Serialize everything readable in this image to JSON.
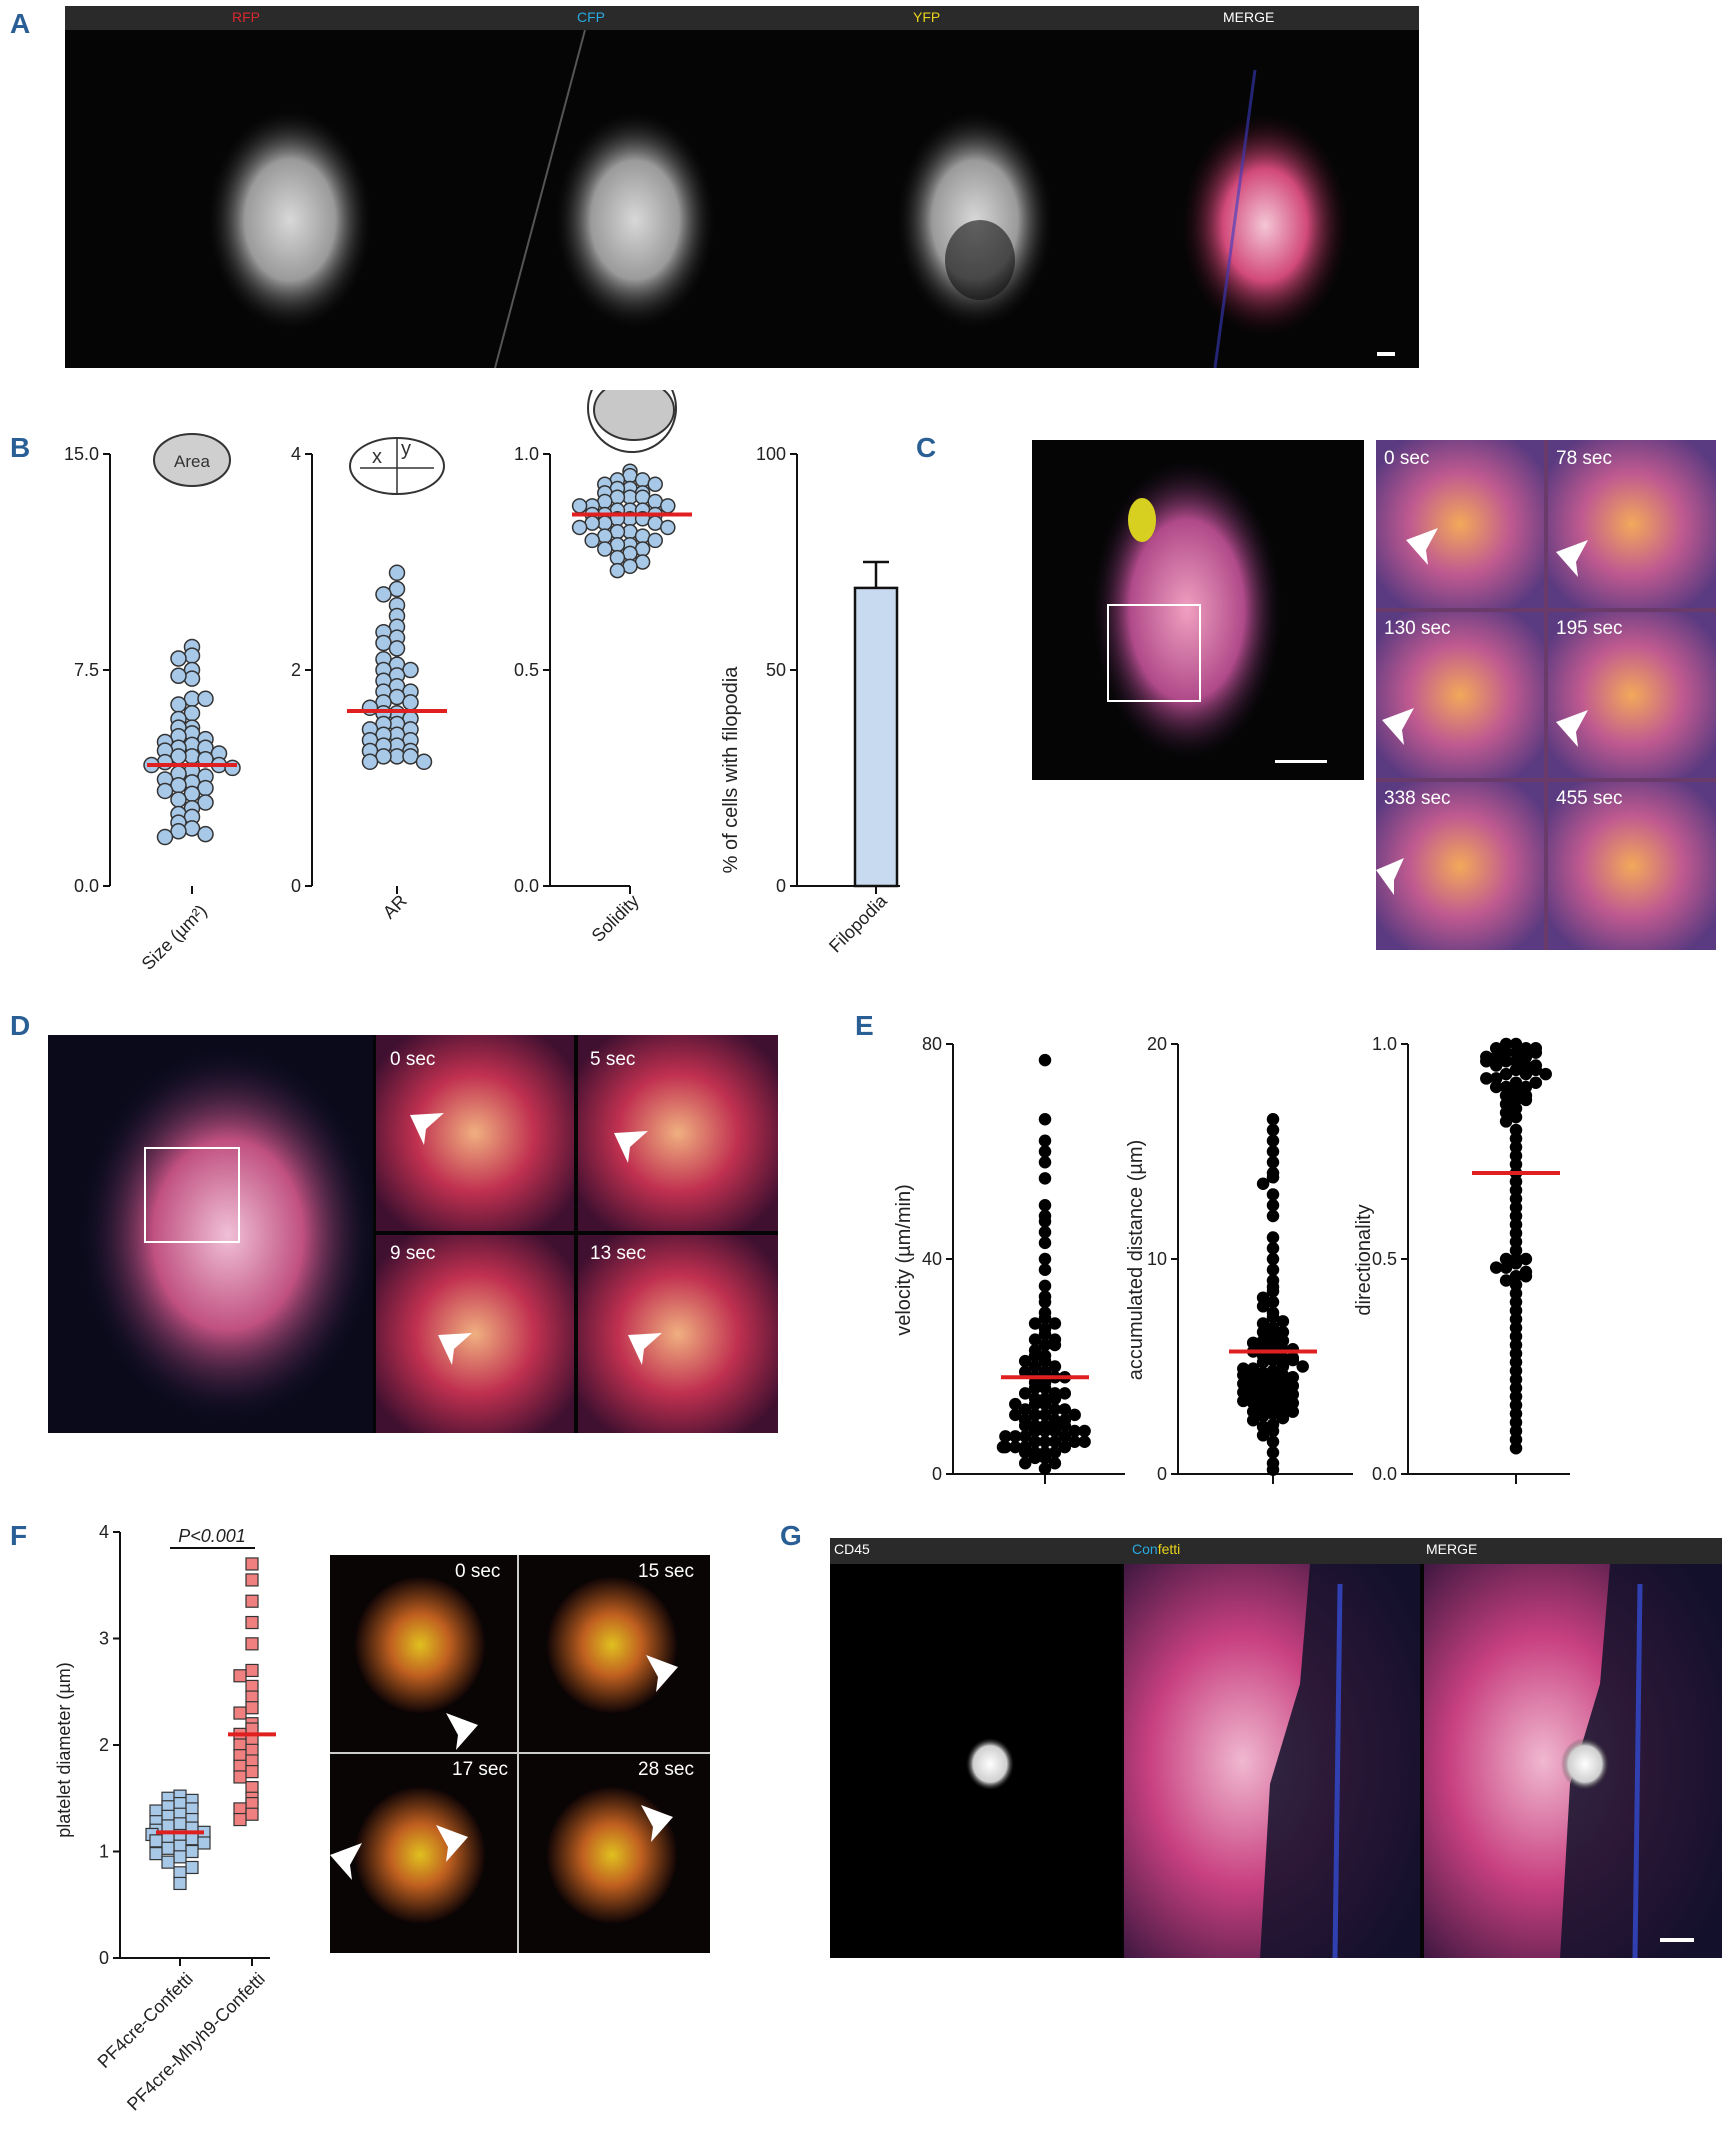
{
  "panels": {
    "A": "A",
    "B": "B",
    "C": "C",
    "D": "D",
    "E": "E",
    "F": "F",
    "G": "G"
  },
  "panelA": {
    "channels": [
      {
        "label": "RFP",
        "color": "#d7282f"
      },
      {
        "label": "CFP",
        "color": "#29a9e0"
      },
      {
        "label": "YFP",
        "color": "#e8d21c"
      },
      {
        "label": "MERGE",
        "color": "#ffffff"
      }
    ]
  },
  "panelB": {
    "plots": [
      {
        "icon_label": "Area",
        "xlabel": "Size (µm²)",
        "yticks": [
          "15.0",
          "7.5",
          "0.0"
        ]
      },
      {
        "icon_label_x": "x",
        "icon_label_y": "y",
        "xlabel": "AR",
        "yticks": [
          "4",
          "2",
          "0"
        ]
      },
      {
        "xlabel": "Solidity",
        "yticks": [
          "1.0",
          "0.5",
          "0.0"
        ]
      },
      {
        "xlabel": "Filopodia",
        "ylabel": "% of cells with filopodia",
        "yticks": [
          "100",
          "50",
          "0"
        ]
      }
    ]
  },
  "panelC": {
    "times": [
      "0 sec",
      "78 sec",
      "130 sec",
      "195 sec",
      "338 sec",
      "455 sec"
    ]
  },
  "panelD": {
    "times": [
      "0 sec",
      "5 sec",
      "9 sec",
      "13 sec"
    ]
  },
  "panelE": {
    "plots": [
      {
        "ylabel": "velocity (µm/min)",
        "yticks": [
          "80",
          "40",
          "0"
        ]
      },
      {
        "ylabel": "accumulated distance (µm)",
        "yticks": [
          "20",
          "10",
          "0"
        ]
      },
      {
        "ylabel": "directionality",
        "yticks": [
          "1.0",
          "0.5",
          "0.0"
        ]
      }
    ]
  },
  "panelF": {
    "ylabel": "platelet diameter (µm)",
    "yticks": [
      "4",
      "3",
      "2",
      "1",
      "0"
    ],
    "pvalue": "P<0.001",
    "groups": [
      "PF4cre-Confetti",
      "PF4cre-Mhyh9-Confetti"
    ],
    "times": [
      "0 sec",
      "15 sec",
      "17 sec",
      "28 sec"
    ]
  },
  "panelG": {
    "labels": {
      "cd45": "CD45",
      "conf_a": "Con",
      "conf_b": "fetti",
      "merge": "MERGE"
    },
    "colors": {
      "con": "#29a9e0",
      "fetti": "#e8d21c"
    }
  },
  "chart_data": [
    {
      "type": "scatter",
      "panel": "B1",
      "title": "",
      "xlabel": "Size (µm²)",
      "ylim": [
        0,
        15
      ],
      "yticks": [
        0,
        7.5,
        15
      ],
      "mean": 4.2,
      "values": [
        8.3,
        8.0,
        7.9,
        7.5,
        7.2,
        7.3,
        6.5,
        6.3,
        6.5,
        6.0,
        5.8,
        5.5,
        5.5,
        5.3,
        5.2,
        5.1,
        5.0,
        4.9,
        4.8,
        4.8,
        4.7,
        4.6,
        4.5,
        4.5,
        4.4,
        4.3,
        4.2,
        4.2,
        4.1,
        4.0,
        3.9,
        3.8,
        3.7,
        3.6,
        3.5,
        3.4,
        3.3,
        3.2,
        3.0,
        2.9,
        2.7,
        2.5,
        2.4,
        2.2,
        2.0,
        1.9,
        1.8,
        1.7
      ]
    },
    {
      "type": "scatter",
      "panel": "B2",
      "title": "",
      "xlabel": "AR",
      "ylim": [
        0,
        4
      ],
      "yticks": [
        0,
        2,
        4
      ],
      "mean": 1.62,
      "values": [
        2.9,
        2.75,
        2.7,
        2.6,
        2.5,
        2.4,
        2.35,
        2.3,
        2.25,
        2.2,
        2.1,
        2.05,
        2.0,
        2.0,
        1.95,
        1.9,
        1.85,
        1.8,
        1.8,
        1.75,
        1.7,
        1.7,
        1.65,
        1.6,
        1.6,
        1.55,
        1.5,
        1.5,
        1.45,
        1.45,
        1.4,
        1.4,
        1.35,
        1.35,
        1.3,
        1.3,
        1.25,
        1.25,
        1.2,
        1.2,
        1.2,
        1.15,
        1.15
      ]
    },
    {
      "type": "scatter",
      "panel": "B3",
      "title": "",
      "xlabel": "Solidity",
      "ylim": [
        0,
        1
      ],
      "yticks": [
        0,
        0.5,
        1.0
      ],
      "mean": 0.86,
      "values": [
        0.96,
        0.95,
        0.94,
        0.94,
        0.93,
        0.93,
        0.92,
        0.92,
        0.91,
        0.91,
        0.9,
        0.9,
        0.9,
        0.89,
        0.89,
        0.88,
        0.88,
        0.88,
        0.87,
        0.87,
        0.87,
        0.86,
        0.86,
        0.86,
        0.85,
        0.85,
        0.85,
        0.84,
        0.84,
        0.84,
        0.83,
        0.83,
        0.82,
        0.82,
        0.81,
        0.81,
        0.8,
        0.8,
        0.79,
        0.79,
        0.78,
        0.78,
        0.77,
        0.76,
        0.75,
        0.74,
        0.73
      ]
    },
    {
      "type": "bar",
      "panel": "B4",
      "categories": [
        "Filopodia"
      ],
      "values": [
        69
      ],
      "error": [
        6
      ],
      "ylabel": "% of cells with filopodia",
      "ylim": [
        0,
        100
      ],
      "yticks": [
        0,
        50,
        100
      ]
    },
    {
      "type": "scatter",
      "panel": "E1",
      "ylabel": "velocity (µm/min)",
      "ylim": [
        0,
        80
      ],
      "yticks": [
        0,
        40,
        80
      ],
      "mean": 18,
      "values": [
        77,
        66,
        62,
        60,
        58,
        55,
        50,
        48,
        47,
        45,
        43,
        40,
        38,
        35,
        33,
        32,
        30,
        29,
        28,
        27,
        26,
        25,
        24,
        23,
        22,
        21,
        20,
        20,
        19,
        18,
        18,
        17,
        16,
        16,
        15,
        15,
        14,
        14,
        13,
        13,
        12,
        12,
        11,
        11,
        10,
        10,
        10,
        9,
        9,
        9,
        8,
        8,
        8,
        7,
        7,
        7,
        6,
        6,
        6,
        5,
        5,
        5,
        4,
        4,
        4,
        3,
        3,
        2,
        2,
        1,
        25,
        22,
        19,
        17,
        14,
        12,
        11,
        9,
        8,
        7,
        6,
        5,
        28,
        24,
        21,
        18,
        15,
        13,
        11,
        9,
        8,
        6,
        5,
        4
      ]
    },
    {
      "type": "scatter",
      "panel": "E2",
      "ylabel": "accumulated distance (µm)",
      "ylim": [
        0,
        20
      ],
      "yticks": [
        0,
        10,
        20
      ],
      "mean": 5.7,
      "values": [
        16.5,
        16,
        15.5,
        15,
        14.5,
        14,
        13.8,
        13.5,
        13,
        12.5,
        12,
        11,
        10.5,
        10,
        9.5,
        9,
        8.7,
        8.5,
        8.2,
        8,
        7.8,
        7.5,
        7.3,
        7,
        6.8,
        6.6,
        6.4,
        6.2,
        6,
        5.9,
        5.8,
        5.6,
        5.5,
        5.4,
        5.3,
        5.2,
        5,
        4.9,
        4.8,
        4.7,
        4.6,
        4.5,
        4.4,
        4.3,
        4.2,
        4.1,
        4,
        3.9,
        3.8,
        3.7,
        3.6,
        3.5,
        3.4,
        3.3,
        3.2,
        3.1,
        3,
        2.9,
        2.8,
        2.7,
        2.6,
        2.5,
        2.3,
        2.2,
        2,
        1.8,
        1.5,
        1,
        0.5,
        0.2,
        6.1,
        5.7,
        5.3,
        4.9,
        4.5,
        4.1,
        3.7,
        3.3,
        2.9,
        7.1,
        6.6,
        6.2,
        5.8,
        5.4,
        5,
        4.6,
        4.2,
        3.8,
        3.4
      ]
    },
    {
      "type": "scatter",
      "panel": "E3",
      "ylabel": "directionality",
      "ylim": [
        0,
        1
      ],
      "yticks": [
        0,
        0.5,
        1.0
      ],
      "mean": 0.7,
      "values": [
        1.0,
        1.0,
        0.99,
        0.99,
        0.98,
        0.98,
        0.97,
        0.97,
        0.96,
        0.96,
        0.95,
        0.95,
        0.94,
        0.93,
        0.93,
        0.92,
        0.91,
        0.9,
        0.9,
        0.89,
        0.88,
        0.87,
        0.86,
        0.85,
        0.84,
        0.83,
        0.82,
        0.8,
        0.78,
        0.76,
        0.74,
        0.72,
        0.7,
        0.68,
        0.66,
        0.64,
        0.62,
        0.6,
        0.58,
        0.56,
        0.54,
        0.52,
        0.5,
        0.5,
        0.49,
        0.48,
        0.47,
        0.46,
        0.45,
        0.44,
        0.42,
        0.4,
        0.38,
        0.36,
        0.34,
        0.32,
        0.3,
        0.28,
        0.26,
        0.24,
        0.22,
        0.2,
        0.18,
        0.16,
        0.14,
        0.12,
        0.1,
        0.08,
        0.06,
        0.98,
        0.97,
        0.95,
        0.94,
        0.92,
        0.9,
        0.88,
        0.5,
        0.48,
        0.46,
        0.99,
        0.96,
        0.93,
        0.91,
        0.87
      ]
    },
    {
      "type": "scatter",
      "panel": "F",
      "ylabel": "platelet diameter (µm)",
      "ylim": [
        0,
        4
      ],
      "yticks": [
        0,
        1,
        2,
        3,
        4
      ],
      "categories": [
        "PF4cre-Confetti",
        "PF4cre-Mhyh9-Confetti"
      ],
      "series": [
        {
          "name": "PF4cre-Confetti",
          "color": "#a8c8e8",
          "mean": 1.18,
          "values": [
            1.52,
            1.5,
            1.48,
            1.45,
            1.42,
            1.4,
            1.38,
            1.35,
            1.33,
            1.3,
            1.28,
            1.26,
            1.24,
            1.22,
            1.2,
            1.18,
            1.16,
            1.15,
            1.13,
            1.12,
            1.1,
            1.08,
            1.05,
            1.03,
            1.0,
            0.98,
            0.95,
            0.9,
            0.85,
            0.8,
            0.7
          ]
        },
        {
          "name": "PF4cre-Mhyh9-Confetti",
          "color": "#f08080",
          "mean": 2.1,
          "values": [
            3.7,
            3.55,
            3.35,
            3.15,
            2.95,
            2.7,
            2.65,
            2.55,
            2.45,
            2.35,
            2.3,
            2.2,
            2.15,
            2.1,
            2.05,
            2.0,
            1.95,
            1.9,
            1.85,
            1.8,
            1.75,
            1.7,
            1.6,
            1.5,
            1.45,
            1.4,
            1.35,
            1.3
          ]
        }
      ]
    }
  ]
}
